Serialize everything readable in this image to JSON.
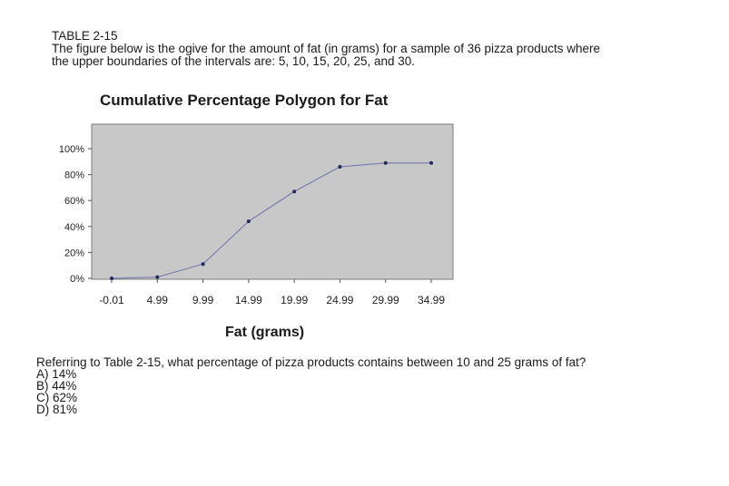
{
  "header": {
    "table_label": "TABLE 2-15",
    "line1": "The figure below is the ogive for the amount of fat (in grams) for a sample of 36 pizza products where",
    "line2": "the upper boundaries of the intervals are: 5, 10, 15, 20, 25, and 30."
  },
  "chart_data": {
    "type": "line",
    "title": "Cumulative Percentage Polygon for Fat",
    "xlabel": "Fat (grams)",
    "ylabel": "",
    "categories": [
      "-0.01",
      "4.99",
      "9.99",
      "14.99",
      "19.99",
      "24.99",
      "29.99",
      "34.99"
    ],
    "values": [
      0,
      1,
      11,
      44,
      67,
      86,
      89,
      89
    ],
    "y_ticks": [
      "0%",
      "20%",
      "40%",
      "60%",
      "80%",
      "100%"
    ],
    "ylim": [
      0,
      100
    ],
    "grid": false,
    "colors": {
      "plot_bg": "#c8c8c8",
      "line": "#7b7fb0",
      "marker": "#1f2a5a"
    }
  },
  "question": {
    "text": "Referring to Table 2-15, what percentage of pizza products contains between 10 and 25 grams of fat?",
    "options": [
      "A) 14%",
      "B) 44%",
      "C) 62%",
      "D) 81%"
    ]
  }
}
